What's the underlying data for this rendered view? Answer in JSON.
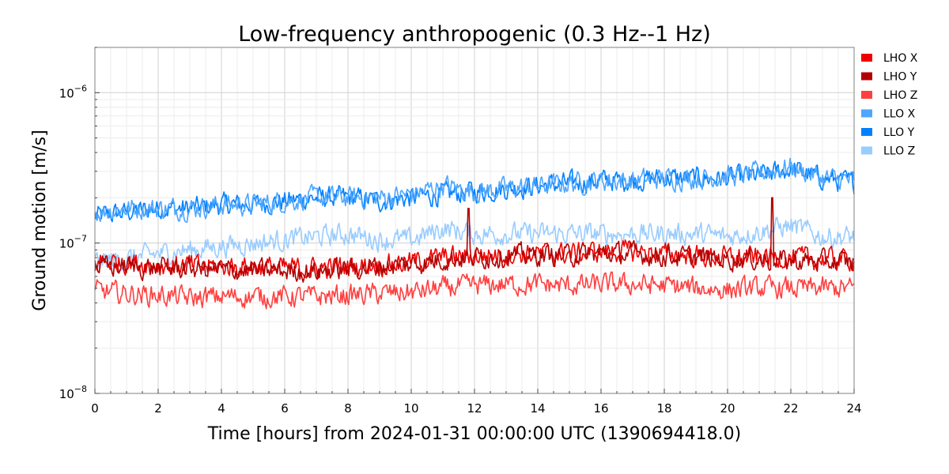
{
  "chart_data": {
    "type": "line",
    "title": "Low-frequency anthropogenic (0.3 Hz--1 Hz)",
    "xlabel": "Time [hours] from 2024-01-31 00:00:00 UTC (1390694418.0)",
    "ylabel": "Ground motion [m/s]",
    "xlim": [
      0,
      24
    ],
    "ylim": [
      1e-08,
      2e-06
    ],
    "yscale": "log",
    "grid": true,
    "legend_position": "right",
    "x_ticks": [
      "0",
      "2",
      "4",
      "6",
      "8",
      "10",
      "12",
      "14",
      "16",
      "18",
      "20",
      "22",
      "24"
    ],
    "y_ticks": [
      {
        "base": "10",
        "exp": "−8",
        "value": 1e-08
      },
      {
        "base": "10",
        "exp": "−7",
        "value": 1e-07
      },
      {
        "base": "10",
        "exp": "−6",
        "value": 1e-06
      }
    ],
    "x": [
      0,
      1,
      2,
      3,
      4,
      5,
      6,
      7,
      8,
      9,
      10,
      11,
      12,
      13,
      14,
      15,
      16,
      17,
      18,
      19,
      20,
      21,
      22,
      23,
      24
    ],
    "series": [
      {
        "name": "LHO X",
        "color": "#ee0000",
        "values": [
          7.5e-08,
          7.5e-08,
          7.2e-08,
          7e-08,
          7e-08,
          7e-08,
          6.8e-08,
          6.8e-08,
          7e-08,
          7.2e-08,
          7.5e-08,
          8e-08,
          8.2e-08,
          8.5e-08,
          8.5e-08,
          8.5e-08,
          8.8e-08,
          8.8e-08,
          8.5e-08,
          8.2e-08,
          8e-08,
          8e-08,
          8e-08,
          7.8e-08,
          7.8e-08
        ]
      },
      {
        "name": "LHO Y",
        "color": "#b30000",
        "values": [
          7e-08,
          7e-08,
          6.8e-08,
          6.8e-08,
          6.6e-08,
          6.6e-08,
          6.5e-08,
          6.5e-08,
          6.7e-08,
          7e-08,
          7.2e-08,
          7.8e-08,
          8e-08,
          8.2e-08,
          8.3e-08,
          8.3e-08,
          8.5e-08,
          8.5e-08,
          8.2e-08,
          8e-08,
          7.8e-08,
          7.8e-08,
          7.6e-08,
          7.5e-08,
          7.5e-08
        ]
      },
      {
        "name": "LHO Z",
        "color": "#ff4040",
        "values": [
          4.8e-08,
          4.6e-08,
          4.5e-08,
          4.3e-08,
          4.4e-08,
          4.4e-08,
          4.4e-08,
          4.4e-08,
          4.5e-08,
          4.6e-08,
          4.7e-08,
          5e-08,
          5.2e-08,
          5.3e-08,
          5.3e-08,
          5.2e-08,
          5.3e-08,
          5.3e-08,
          5.2e-08,
          5e-08,
          4.9e-08,
          5e-08,
          5e-08,
          5e-08,
          5e-08
        ]
      },
      {
        "name": "LLO X",
        "color": "#4da6ff",
        "values": [
          1.6e-07,
          1.7e-07,
          1.7e-07,
          1.7e-07,
          1.8e-07,
          1.8e-07,
          1.9e-07,
          2e-07,
          2e-07,
          2e-07,
          2.1e-07,
          2.4e-07,
          2.2e-07,
          2.3e-07,
          2.4e-07,
          2.5e-07,
          2.6e-07,
          2.6e-07,
          2.7e-07,
          2.7e-07,
          2.8e-07,
          2.9e-07,
          3.2e-07,
          2.7e-07,
          2.6e-07
        ]
      },
      {
        "name": "LLO Y",
        "color": "#0080ff",
        "values": [
          1.5e-07,
          1.6e-07,
          1.7e-07,
          1.7e-07,
          1.8e-07,
          1.8e-07,
          1.9e-07,
          2e-07,
          2e-07,
          1.9e-07,
          2e-07,
          2.1e-07,
          2.2e-07,
          2.3e-07,
          2.4e-07,
          2.5e-07,
          2.6e-07,
          2.6e-07,
          2.7e-07,
          2.7e-07,
          2.7e-07,
          2.8e-07,
          3.1e-07,
          2.7e-07,
          2.5e-07
        ]
      },
      {
        "name": "LLO Z",
        "color": "#99ccff",
        "values": [
          7.5e-08,
          7.8e-08,
          8.5e-08,
          9e-08,
          9.5e-08,
          1e-07,
          1.05e-07,
          1.1e-07,
          1.15e-07,
          1.05e-07,
          1.05e-07,
          1.25e-07,
          1.15e-07,
          1.15e-07,
          1.15e-07,
          1.15e-07,
          1.15e-07,
          1.15e-07,
          1.15e-07,
          1.15e-07,
          1.1e-07,
          1.2e-07,
          1.3e-07,
          1.1e-07,
          1.1e-07
        ]
      }
    ],
    "spikes": [
      {
        "series": "LHO Y",
        "x": 11.8,
        "value": 1.7e-07
      },
      {
        "series": "LHO Y",
        "x": 21.4,
        "value": 2e-07
      }
    ]
  }
}
